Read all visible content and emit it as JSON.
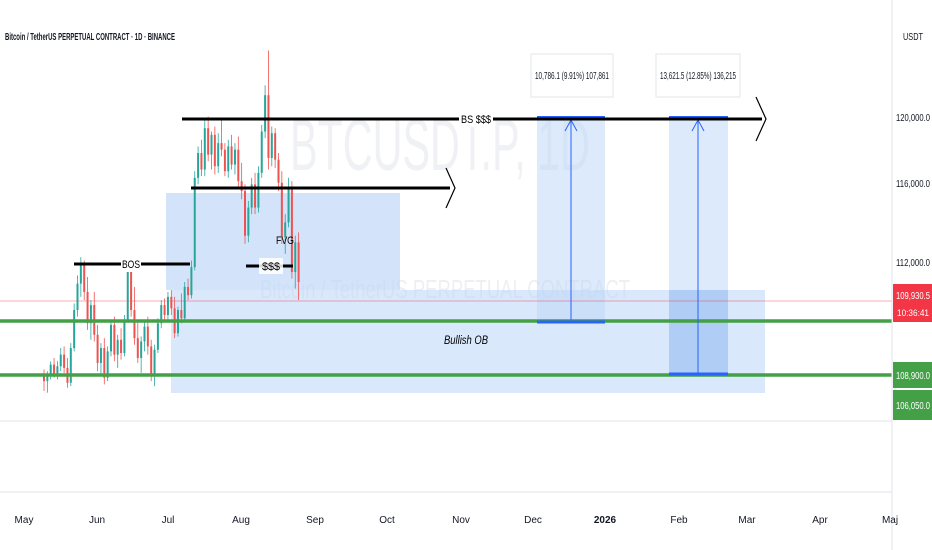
{
  "header": {
    "title": "Bitcoin / TetherUS PERPETUAL CONTRACT · 1D · BINANCE",
    "currency": "USDT"
  },
  "watermark": {
    "symbol": "BTCUSDT.P, 1D",
    "name": "Bitcoin / TetherUS PERPETUAL CONTRACT"
  },
  "colors": {
    "up": "#26a69a",
    "down": "#ef5350",
    "zone": "#bbd6f7",
    "ob_line": "#43a047",
    "target_line": "#2962ff",
    "price_badge": "#f23645",
    "ob_badge": "#43a047"
  },
  "chart_data": {
    "type": "candlestick",
    "symbol": "BTCUSDT.P",
    "timeframe": "1D",
    "exchange": "BINANCE",
    "ylim": [
      103200,
      123900
    ],
    "y_ticks": [
      "120,000.0",
      "116,000.0",
      "112,000.0"
    ],
    "x_ticks": [
      "May",
      "Jun",
      "Jul",
      "Aug",
      "Sep",
      "Oct",
      "Nov",
      "Dec",
      "2026",
      "Feb",
      "Mar",
      "Apr",
      "Maj"
    ],
    "last_price": "109,930.5",
    "countdown": "10:36:41",
    "levels": [
      {
        "label": "108,900.0",
        "value": 108900
      },
      {
        "label": "106,050.0",
        "value": 106050
      }
    ],
    "annotations": {
      "bos": "BOS",
      "sss": "$$$",
      "bs": "BS $$$",
      "fvg": "FVG",
      "bullish_ob": "Bullish OB"
    },
    "measurements": [
      {
        "text": "10,786.1 (9.91%) 107,861",
        "from": 108900,
        "to": 119700
      },
      {
        "text": "13,621.5 (12.85%) 136,215",
        "from": 106050,
        "to": 119700
      }
    ],
    "candles": [
      [
        104200,
        104600,
        103300,
        103900
      ],
      [
        103900,
        104500,
        103200,
        104300
      ],
      [
        104300,
        105100,
        104000,
        104900
      ],
      [
        104900,
        105300,
        104100,
        104300
      ],
      [
        104300,
        105100,
        104000,
        104800
      ],
      [
        104800,
        105900,
        104500,
        105500
      ],
      [
        105500,
        106000,
        104400,
        104700
      ],
      [
        104700,
        105300,
        103500,
        103800
      ],
      [
        103800,
        106200,
        103600,
        105900
      ],
      [
        105900,
        108600,
        105700,
        108200
      ],
      [
        108200,
        110300,
        107800,
        109800
      ],
      [
        109800,
        111400,
        109000,
        110900
      ],
      [
        110900,
        111200,
        108800,
        109300
      ],
      [
        109300,
        110200,
        107000,
        107400
      ],
      [
        107400,
        108800,
        106400,
        108500
      ],
      [
        108500,
        109300,
        106300,
        106700
      ],
      [
        106700,
        107300,
        104500,
        105000
      ],
      [
        105000,
        106200,
        104200,
        105900
      ],
      [
        105900,
        106500,
        103700,
        104100
      ],
      [
        104100,
        106000,
        103900,
        105700
      ],
      [
        105700,
        107600,
        105400,
        107300
      ],
      [
        107300,
        107800,
        105100,
        105500
      ],
      [
        105500,
        106700,
        104700,
        106400
      ],
      [
        106400,
        107100,
        105200,
        105600
      ],
      [
        105600,
        107900,
        105400,
        107600
      ],
      [
        107600,
        110900,
        107500,
        110500
      ],
      [
        110500,
        110800,
        107800,
        108200
      ],
      [
        108200,
        109600,
        106100,
        106500
      ],
      [
        106500,
        107600,
        105000,
        105300
      ],
      [
        105300,
        106600,
        104400,
        106300
      ],
      [
        106300,
        107500,
        105700,
        107200
      ],
      [
        107200,
        107800,
        105500,
        106000
      ],
      [
        106000,
        106400,
        103900,
        104200
      ],
      [
        104200,
        106100,
        103600,
        105800
      ],
      [
        105800,
        107700,
        105600,
        107400
      ],
      [
        107400,
        108800,
        107100,
        108500
      ],
      [
        108500,
        108900,
        107600,
        107900
      ],
      [
        107900,
        109300,
        107600,
        109000
      ],
      [
        109000,
        109400,
        107900,
        108300
      ],
      [
        108300,
        109000,
        106500,
        106800
      ],
      [
        106800,
        108400,
        106600,
        108200
      ],
      [
        108200,
        109200,
        107400,
        107700
      ],
      [
        107700,
        109900,
        107500,
        109600
      ],
      [
        109600,
        110100,
        108800,
        109100
      ],
      [
        109100,
        111200,
        108900,
        110800
      ],
      [
        110800,
        116600,
        110600,
        116200
      ],
      [
        116200,
        118100,
        115800,
        117700
      ],
      [
        117700,
        118500,
        116300,
        116700
      ],
      [
        116700,
        119700,
        116300,
        119200
      ],
      [
        119200,
        119900,
        117200,
        117600
      ],
      [
        117600,
        119000,
        116700,
        118800
      ],
      [
        118800,
        119300,
        116400,
        116900
      ],
      [
        116900,
        118900,
        116500,
        118300
      ],
      [
        118300,
        119700,
        117500,
        117900
      ],
      [
        117900,
        118300,
        116300,
        116600
      ],
      [
        116600,
        118500,
        116200,
        118100
      ],
      [
        118100,
        118800,
        116700,
        117000
      ],
      [
        117000,
        118300,
        116400,
        117900
      ],
      [
        117900,
        118700,
        115600,
        116000
      ],
      [
        116000,
        117100,
        114900,
        115400
      ],
      [
        115400,
        115800,
        112200,
        112700
      ],
      [
        112700,
        114800,
        112300,
        114400
      ],
      [
        114400,
        116200,
        114000,
        115800
      ],
      [
        115800,
        116500,
        114000,
        114400
      ],
      [
        114400,
        116900,
        114100,
        116500
      ],
      [
        116500,
        119400,
        116200,
        119000
      ],
      [
        119000,
        121800,
        118600,
        121200
      ],
      [
        121200,
        123900,
        116700,
        117400
      ],
      [
        117400,
        119300,
        116900,
        118900
      ],
      [
        118900,
        119200,
        116800,
        117300
      ],
      [
        117300,
        117700,
        115400,
        115900
      ],
      [
        115900,
        116600,
        112200,
        112600
      ],
      [
        112600,
        114000,
        111600,
        113500
      ],
      [
        113500,
        116200,
        113200,
        115600
      ],
      [
        115600,
        116000,
        110100,
        110500
      ],
      [
        110500,
        112700,
        109500,
        112300
      ],
      [
        112300,
        112900,
        108800,
        109900
      ]
    ]
  }
}
